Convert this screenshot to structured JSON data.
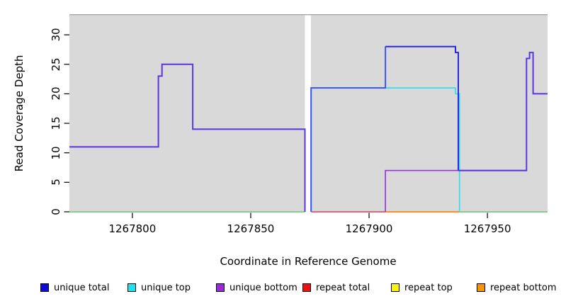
{
  "figure": {
    "background": "#ffffff",
    "plot_background": "#d9d9d9",
    "plot_top_border_color": "#a6a6a6"
  },
  "legend": {
    "items": [
      {
        "label": "unique total",
        "color": "#0d0dd8"
      },
      {
        "label": "unique top",
        "color": "#1ae4ee"
      },
      {
        "label": "unique bottom",
        "color": "#9a2ad8"
      },
      {
        "label": "repeat total",
        "color": "#ee1111"
      },
      {
        "label": "repeat top",
        "color": "#fdf405"
      },
      {
        "label": "repeat bottom",
        "color": "#f79406"
      }
    ]
  },
  "chart_data": {
    "type": "line",
    "title": "",
    "xlabel": "Coordinate in Reference Genome",
    "ylabel": "Read Coverage Depth",
    "xlim": [
      1267773.4,
      1267975.4
    ],
    "ylim": [
      0,
      33.5
    ],
    "x_ticks": [
      1267800,
      1267850,
      1267900,
      1267950
    ],
    "y_ticks": [
      0,
      5,
      10,
      15,
      20,
      25,
      30
    ],
    "grid": false,
    "legend_position": "bottom",
    "no_data_gap": {
      "x0": 1267872.9,
      "x1": 1267875.4
    },
    "series": [
      {
        "name": "zero-line-left",
        "color": "#7cc47c",
        "width": 1.6,
        "points": [
          [
            1267773.4,
            0
          ],
          [
            1267872.9,
            0
          ]
        ]
      },
      {
        "name": "repeat-total-zero",
        "color": "#c84a6e",
        "width": 1.6,
        "points": [
          [
            1267875.6,
            0
          ],
          [
            1267906.9,
            0
          ]
        ]
      },
      {
        "name": "repeat-bottom-zero",
        "color": "#f68b1f",
        "width": 1.8,
        "points": [
          [
            1267906.9,
            0
          ],
          [
            1267938.2,
            0
          ]
        ]
      },
      {
        "name": "zero-line-right",
        "color": "#7cc47c",
        "width": 1.6,
        "points": [
          [
            1267938.2,
            0
          ],
          [
            1267975.4,
            0
          ]
        ]
      },
      {
        "name": "unique-top",
        "color": "#35dcec",
        "width": 1.7,
        "points": [
          [
            1267875.5,
            0
          ],
          [
            1267875.5,
            21
          ],
          [
            1267936.5,
            21
          ],
          [
            1267936.5,
            20
          ],
          [
            1267938.2,
            20
          ],
          [
            1267938.2,
            0
          ]
        ]
      },
      {
        "name": "unique-bottom",
        "color": "#9638d2",
        "width": 1.7,
        "points": [
          [
            1267906.9,
            0
          ],
          [
            1267906.9,
            7
          ],
          [
            1267966.5,
            7
          ]
        ]
      },
      {
        "name": "unique-total-left",
        "color": "#5a36e2",
        "width": 2,
        "points": [
          [
            1267773.4,
            11
          ],
          [
            1267811,
            11
          ],
          [
            1267811,
            23
          ],
          [
            1267812.5,
            23
          ],
          [
            1267812.5,
            25
          ],
          [
            1267825.5,
            25
          ],
          [
            1267825.5,
            14
          ],
          [
            1267872.9,
            14
          ],
          [
            1267872.9,
            0
          ]
        ]
      },
      {
        "name": "unique-total-right-low",
        "color": "#3c55f2",
        "width": 2,
        "points": [
          [
            1267875.5,
            0
          ],
          [
            1267875.5,
            21
          ],
          [
            1267906.9,
            21
          ],
          [
            1267906.9,
            28
          ]
        ]
      },
      {
        "name": "unique-total-right-high",
        "color": "#2a28df",
        "width": 2,
        "points": [
          [
            1267906.9,
            28
          ],
          [
            1267936.5,
            28
          ],
          [
            1267936.5,
            27
          ],
          [
            1267937.7,
            27
          ],
          [
            1267937.7,
            7
          ]
        ]
      },
      {
        "name": "unique-total-right-tail",
        "color": "#5a36e2",
        "width": 2,
        "points": [
          [
            1267937.7,
            7
          ],
          [
            1267966.5,
            7
          ],
          [
            1267966.5,
            26
          ],
          [
            1267967.8,
            26
          ],
          [
            1267967.8,
            27
          ],
          [
            1267969.3,
            27
          ],
          [
            1267969.3,
            20
          ],
          [
            1267975.4,
            20
          ]
        ]
      }
    ]
  }
}
